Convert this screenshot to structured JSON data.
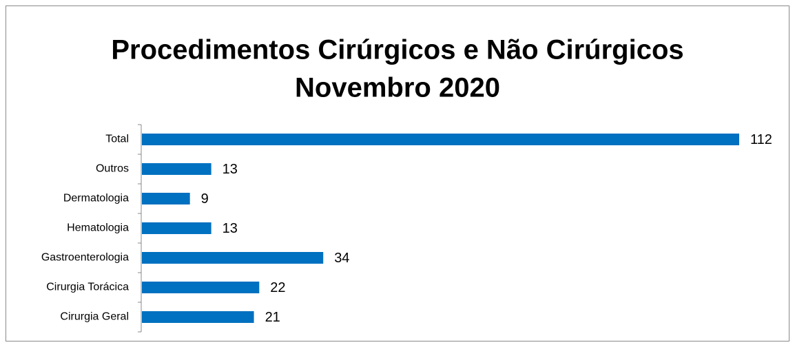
{
  "chart_data": {
    "type": "bar",
    "orientation": "horizontal",
    "title": [
      "Procedimentos Cirúrgicos e Não Cirúrgicos",
      "Novembro 2020"
    ],
    "categories": [
      "Total",
      "Outros",
      "Dermatologia",
      "Hematologia",
      "Gastroenterologia",
      "Cirurgia Torácica",
      "Cirurgia Geral"
    ],
    "values": [
      112,
      13,
      9,
      13,
      34,
      22,
      21
    ],
    "color": "#0070c0"
  }
}
